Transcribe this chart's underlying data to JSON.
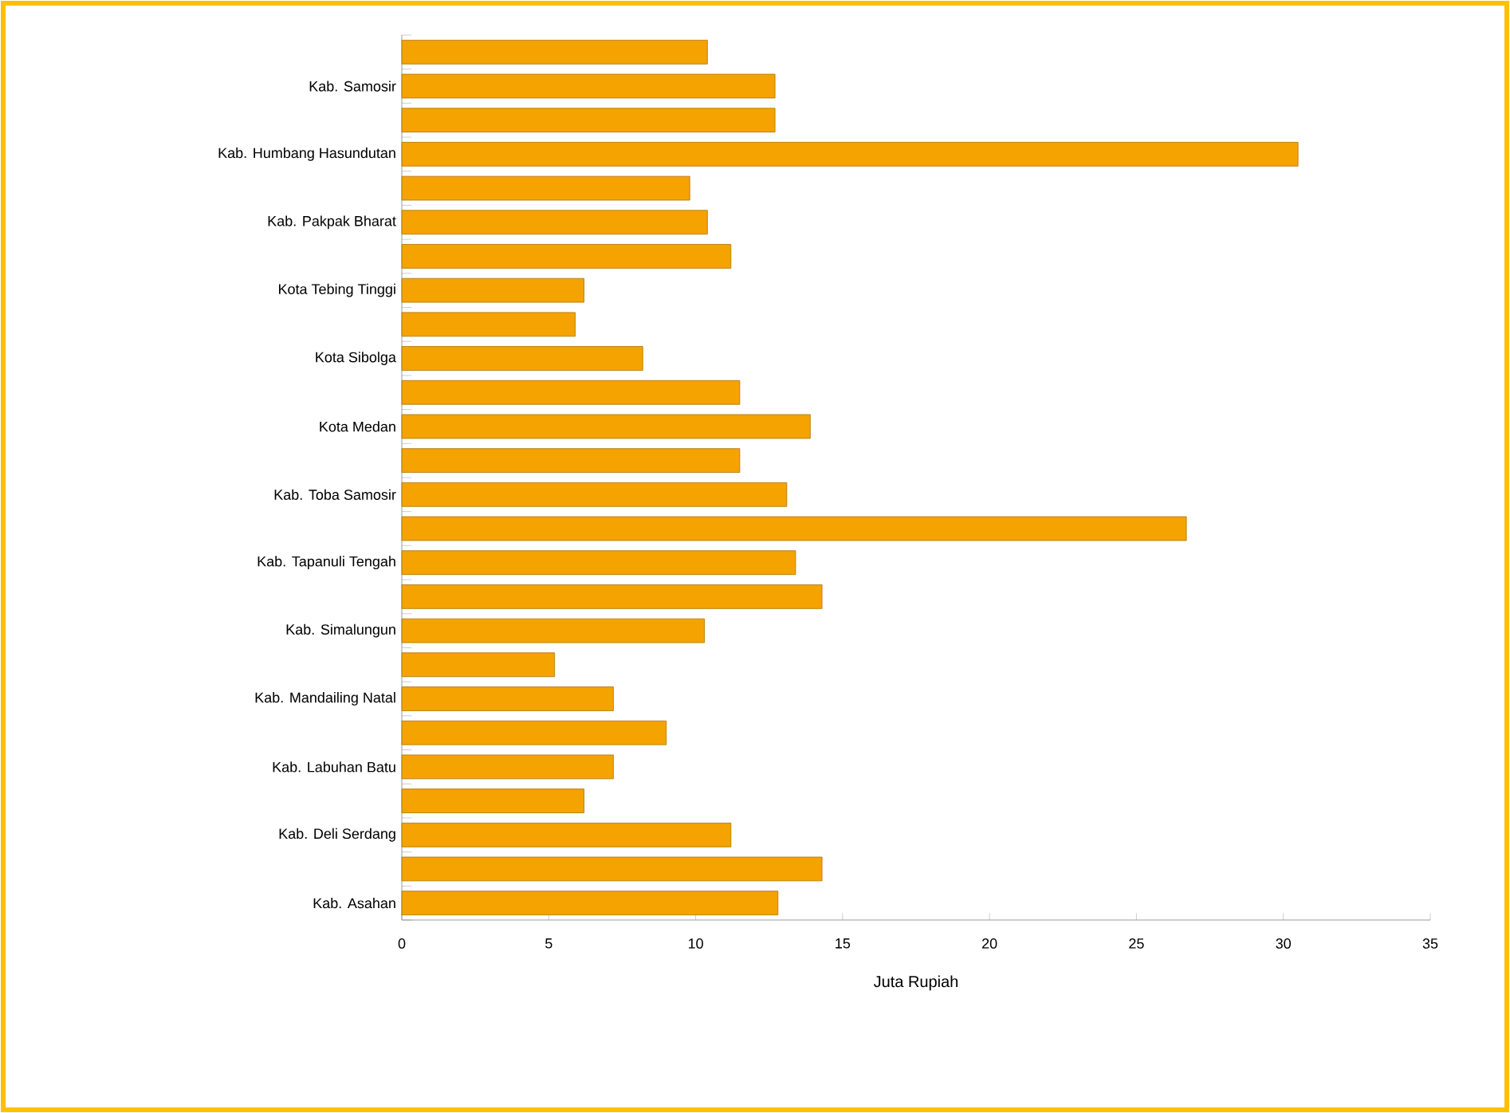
{
  "chart_data": {
    "type": "bar",
    "orientation": "horizontal",
    "xlabel": "Juta Rupiah",
    "categories": [
      null,
      "Kab. Samosir",
      null,
      "Kab. Humbang Hasundutan",
      null,
      "Kab. Pakpak Bharat",
      null,
      "Kota Tebing Tinggi",
      null,
      "Kota Sibolga",
      null,
      "Kota Medan",
      null,
      "Kab. Toba Samosir",
      null,
      "Kab. Tapanuli Tengah",
      null,
      "Kab. Simalungun",
      null,
      "Kab. Mandailing Natal",
      null,
      "Kab. Labuhan Batu",
      null,
      "Kab. Deli Serdang",
      null,
      "Kab. Asahan"
    ],
    "values": [
      10.4,
      12.7,
      12.7,
      30.5,
      9.8,
      10.4,
      11.2,
      6.2,
      5.9,
      8.2,
      11.5,
      13.9,
      11.5,
      13.1,
      26.7,
      13.4,
      14.3,
      10.3,
      5.2,
      7.2,
      9.0,
      7.2,
      6.2,
      11.2,
      14.3,
      12.8
    ],
    "color": "#f5a300",
    "xlim": [
      0,
      35
    ],
    "xticks": [
      0,
      5,
      10,
      15,
      20,
      25,
      30,
      35
    ]
  }
}
